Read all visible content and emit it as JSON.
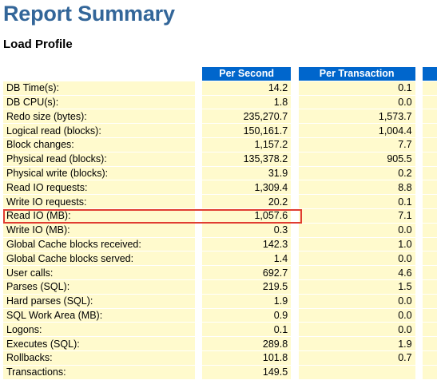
{
  "report": {
    "title": "Report Summary",
    "section": "Load Profile"
  },
  "table": {
    "headers": [
      "Per Second",
      "Per Transaction"
    ],
    "rows": [
      {
        "name": "DB Time(s):",
        "per_second": "14.2",
        "per_transaction": "0.1"
      },
      {
        "name": "DB CPU(s):",
        "per_second": "1.8",
        "per_transaction": "0.0"
      },
      {
        "name": "Redo size (bytes):",
        "per_second": "235,270.7",
        "per_transaction": "1,573.7"
      },
      {
        "name": "Logical read (blocks):",
        "per_second": "150,161.7",
        "per_transaction": "1,004.4"
      },
      {
        "name": "Block changes:",
        "per_second": "1,157.2",
        "per_transaction": "7.7"
      },
      {
        "name": "Physical read (blocks):",
        "per_second": "135,378.2",
        "per_transaction": "905.5"
      },
      {
        "name": "Physical write (blocks):",
        "per_second": "31.9",
        "per_transaction": "0.2"
      },
      {
        "name": "Read IO requests:",
        "per_second": "1,309.4",
        "per_transaction": "8.8"
      },
      {
        "name": "Write IO requests:",
        "per_second": "20.2",
        "per_transaction": "0.1"
      },
      {
        "name": "Read IO (MB):",
        "per_second": "1,057.6",
        "per_transaction": "7.1"
      },
      {
        "name": "Write IO (MB):",
        "per_second": "0.3",
        "per_transaction": "0.0"
      },
      {
        "name": "Global Cache blocks received:",
        "per_second": "142.3",
        "per_transaction": "1.0"
      },
      {
        "name": "Global Cache blocks served:",
        "per_second": "1.4",
        "per_transaction": "0.0"
      },
      {
        "name": "User calls:",
        "per_second": "692.7",
        "per_transaction": "4.6"
      },
      {
        "name": "Parses (SQL):",
        "per_second": "219.5",
        "per_transaction": "1.5"
      },
      {
        "name": "Hard parses (SQL):",
        "per_second": "1.9",
        "per_transaction": "0.0"
      },
      {
        "name": "SQL Work Area (MB):",
        "per_second": "0.9",
        "per_transaction": "0.0"
      },
      {
        "name": "Logons:",
        "per_second": "0.1",
        "per_transaction": "0.0"
      },
      {
        "name": "Executes (SQL):",
        "per_second": "289.8",
        "per_transaction": "1.9"
      },
      {
        "name": "Rollbacks:",
        "per_second": "101.8",
        "per_transaction": "0.7"
      },
      {
        "name": "Transactions:",
        "per_second": "149.5",
        "per_transaction": ""
      }
    ]
  },
  "colors": {
    "title": "#336699",
    "header_bg": "#0066cc",
    "row_bg": "#fffacd",
    "highlight_border": "#e03c31"
  }
}
